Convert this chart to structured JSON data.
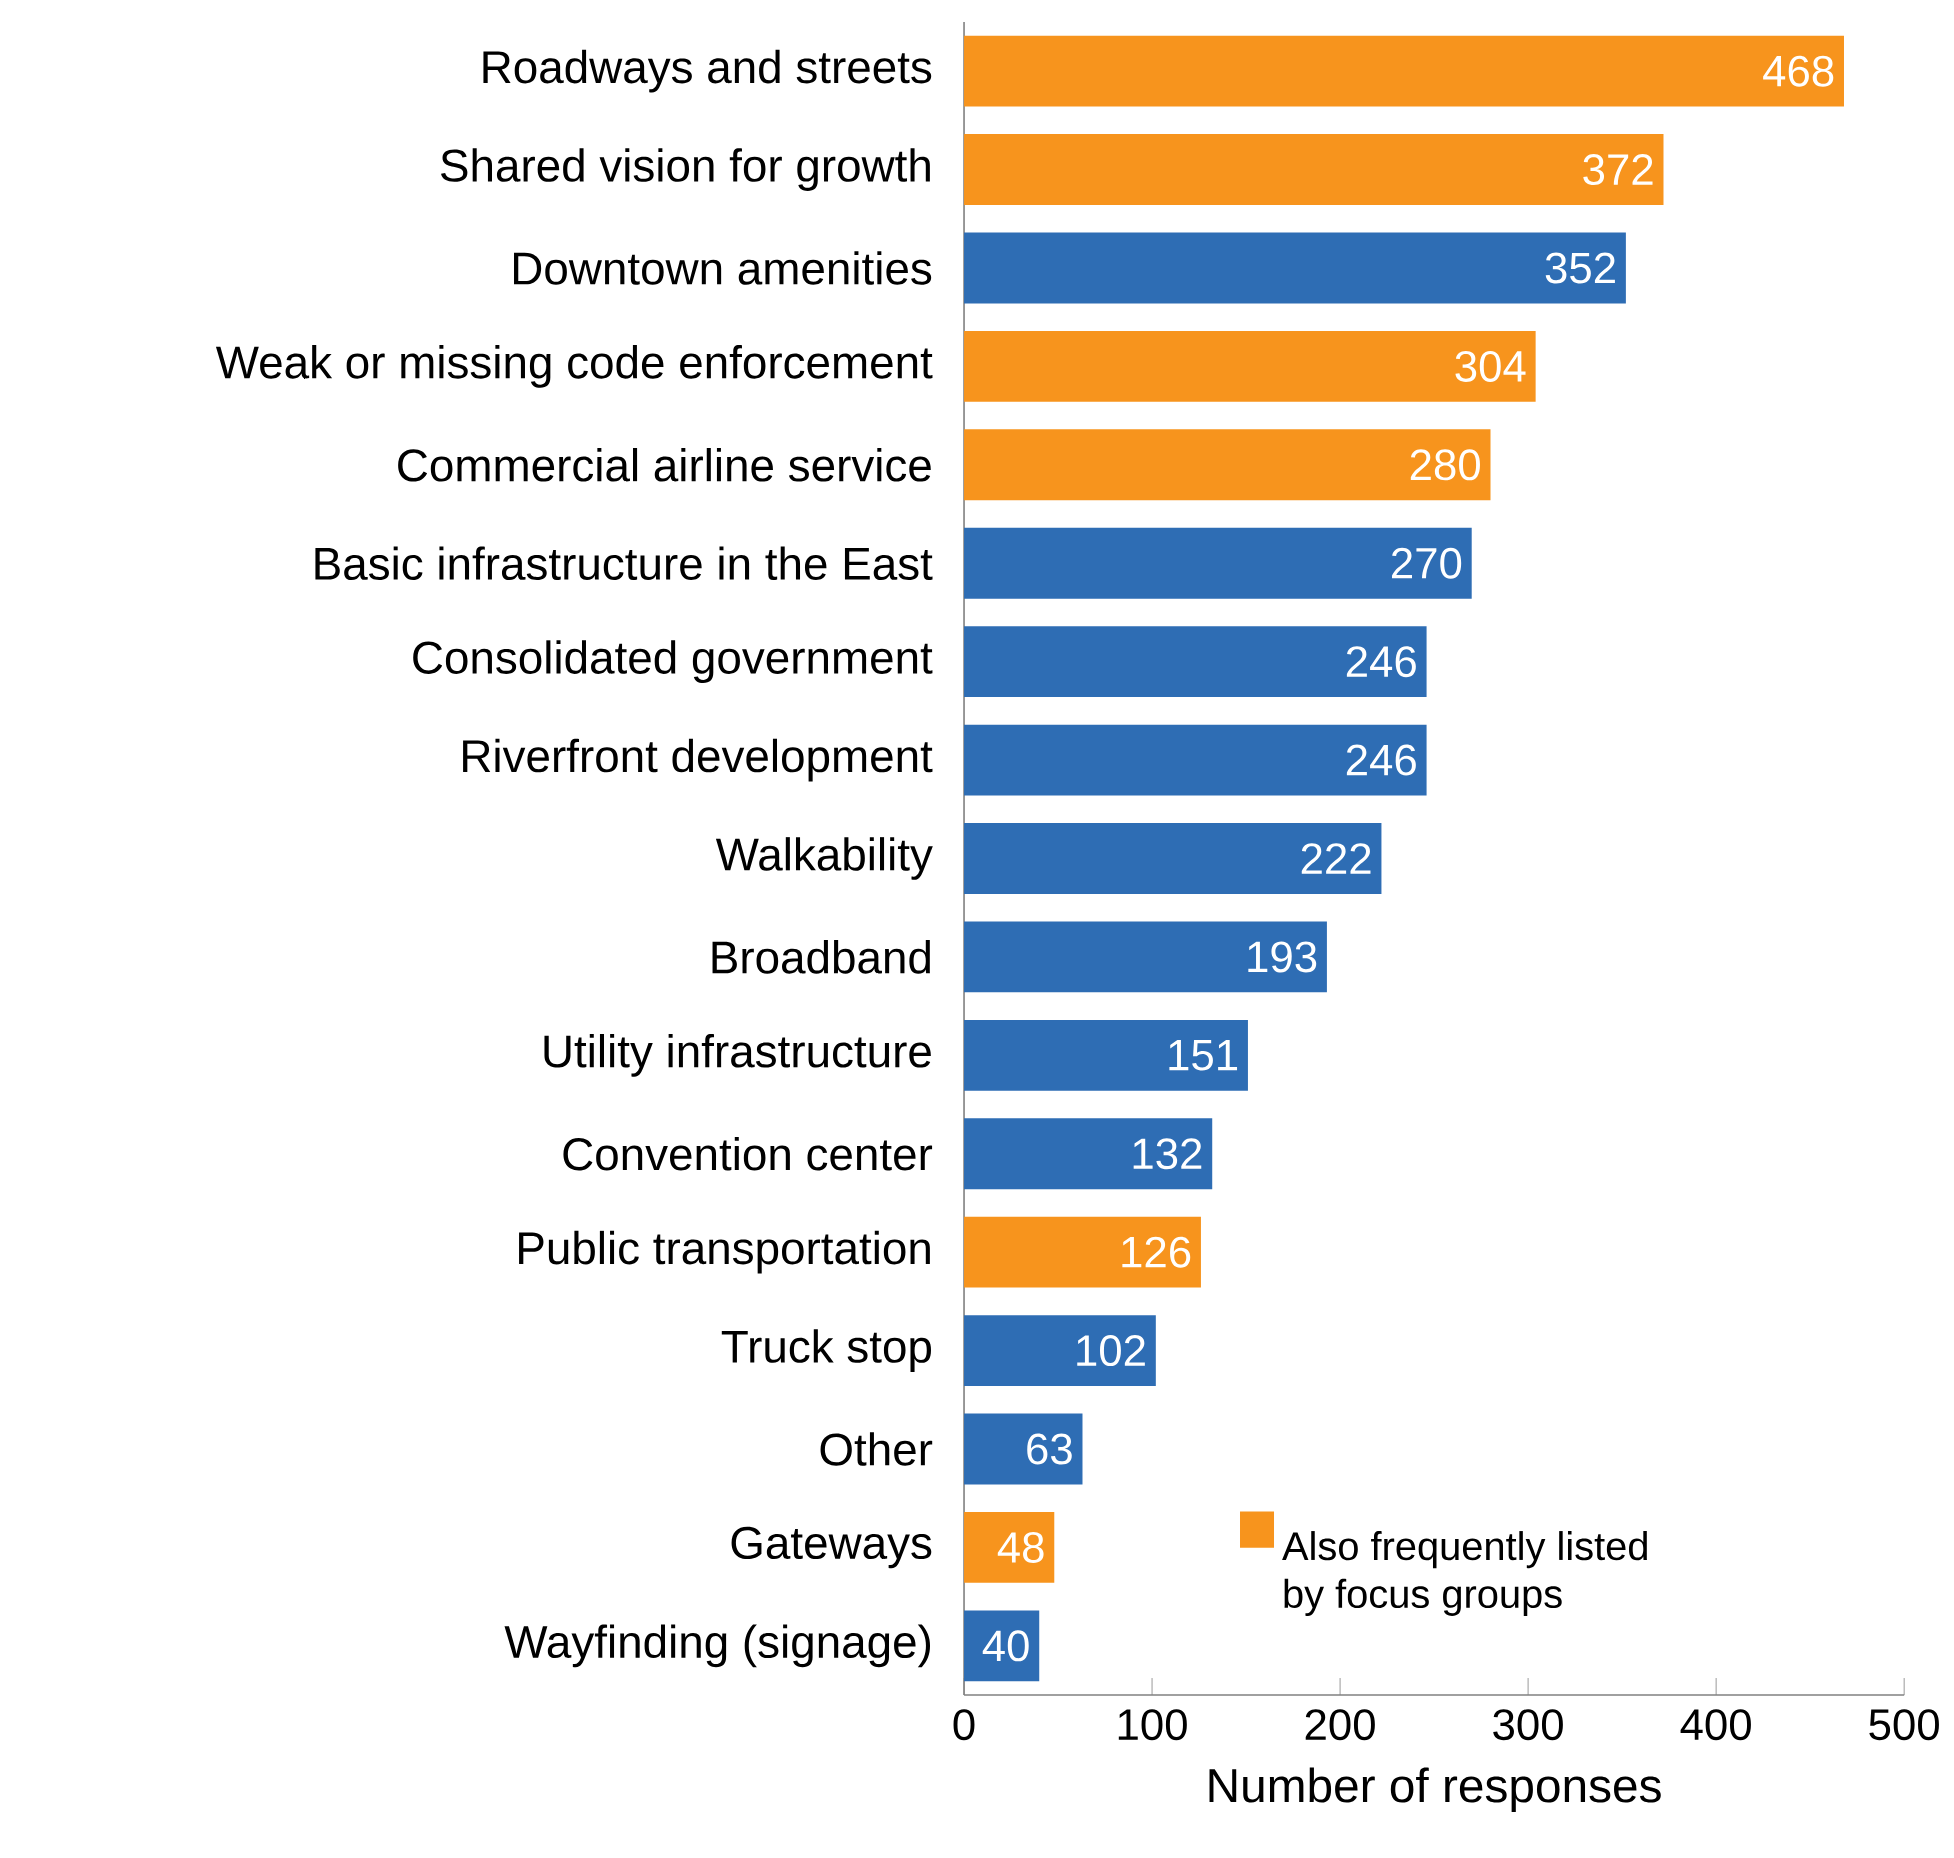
{
  "chart_data": {
    "type": "bar",
    "orientation": "horizontal",
    "xlabel": "Number of responses",
    "categories": [
      "Roadways and streets",
      "Shared vision for growth",
      "Downtown amenities",
      "Weak or missing code enforcement",
      "Commercial airline service",
      "Basic infrastructure in the East",
      "Consolidated government",
      "Riverfront development",
      "Walkability",
      "Broadband",
      "Utility infrastructure",
      "Convention center",
      "Public transportation",
      "Truck stop",
      "Other",
      "Gateways",
      "Wayfinding (signage)"
    ],
    "series": [
      {
        "name": "Also frequently listed by focus groups",
        "color": "#f7941d",
        "values": [
          468,
          372,
          null,
          304,
          280,
          null,
          null,
          null,
          null,
          null,
          null,
          null,
          126,
          null,
          null,
          48,
          null
        ]
      },
      {
        "color": "#2e6db4",
        "values": [
          null,
          null,
          352,
          null,
          null,
          270,
          246,
          246,
          222,
          193,
          151,
          132,
          null,
          102,
          63,
          null,
          40
        ]
      }
    ],
    "xlim": [
      0,
      500
    ],
    "xticks": [
      0,
      100,
      200,
      300,
      400,
      500
    ],
    "data_labels": true,
    "legend": "bottom right"
  }
}
